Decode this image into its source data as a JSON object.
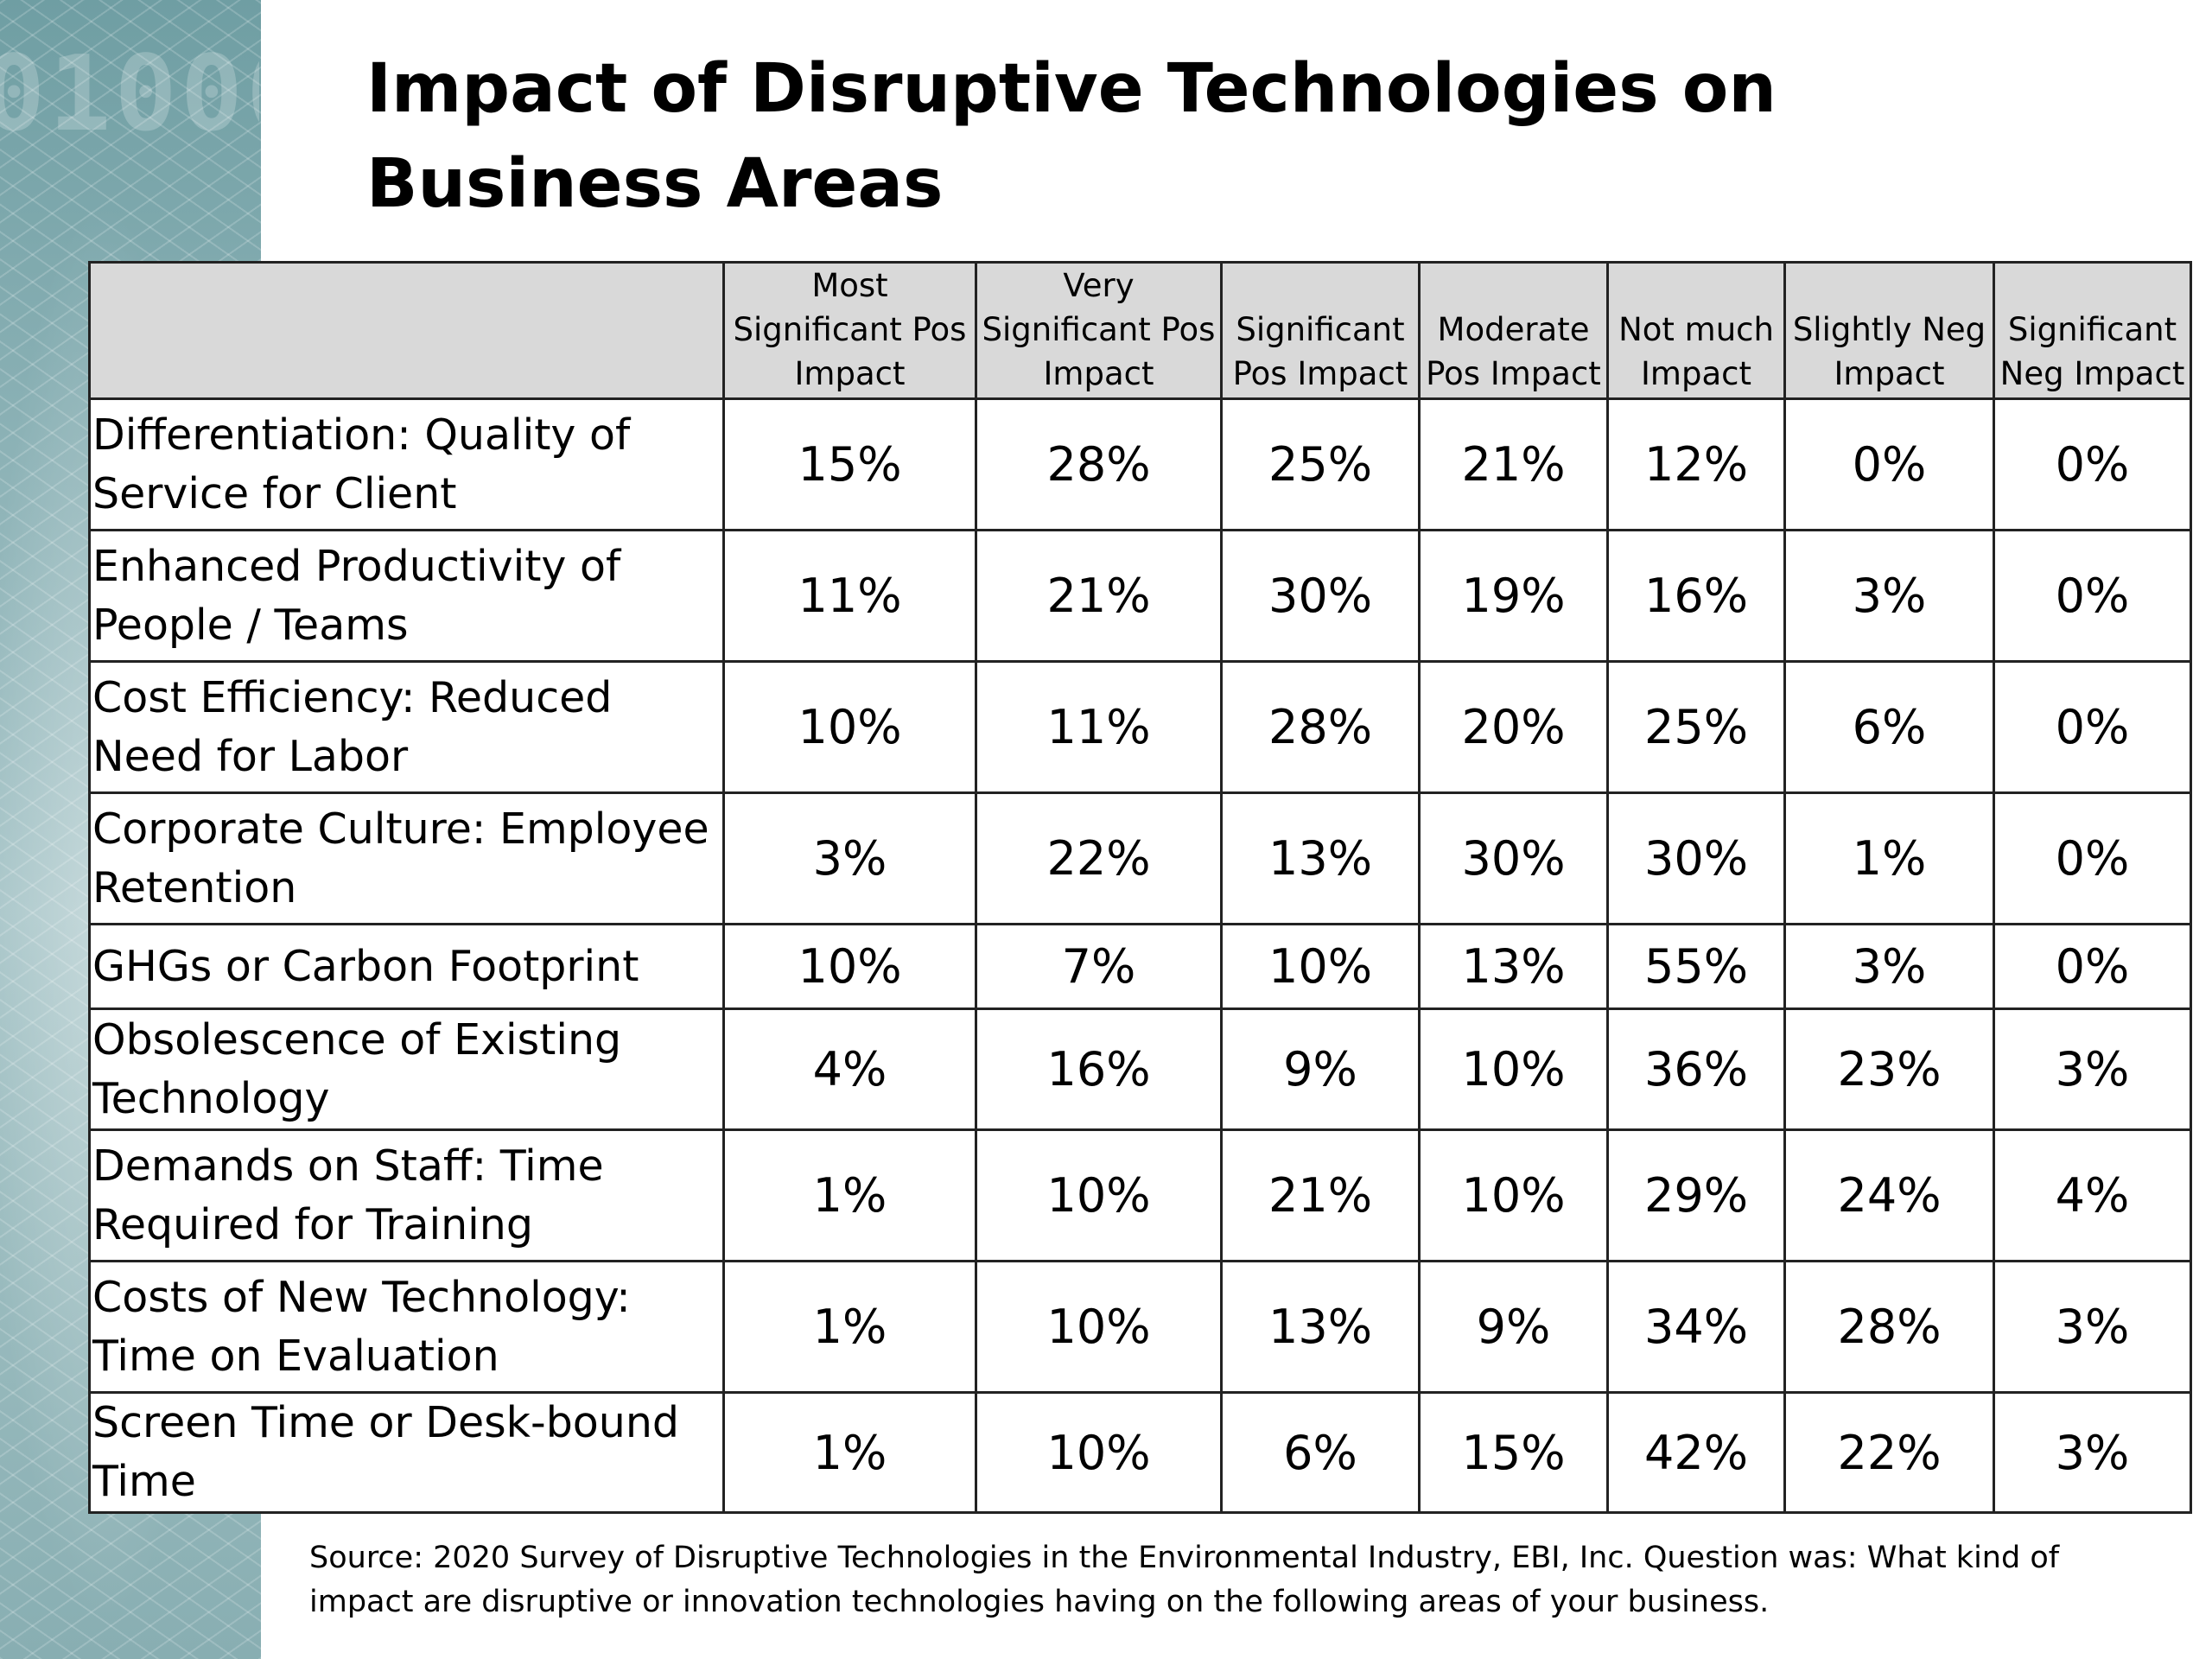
{
  "title": "Impact of Disruptive Technologies on Business Areas",
  "source": "Source: 2020 Survey of Disruptive Technologies in the Environmental Industry, EBI, Inc. Question was: What kind of impact are disruptive or innovation technologies having on the following areas of your business.",
  "chart_data": {
    "type": "table",
    "title": "Impact of Disruptive Technologies on Business Areas",
    "columns": [
      "Most Significant Pos Impact",
      "Very Significant Pos Impact",
      "Significant Pos Impact",
      "Moderate Pos Impact",
      "Not much Impact",
      "Slightly Neg Impact",
      "Significant Neg Impact"
    ],
    "rows": [
      {
        "label": "Differentiation: Quality of Service for Client",
        "values": [
          "15%",
          "28%",
          "25%",
          "21%",
          "12%",
          "0%",
          "0%"
        ]
      },
      {
        "label": "Enhanced Productivity of People / Teams",
        "values": [
          "11%",
          "21%",
          "30%",
          "19%",
          "16%",
          "3%",
          "0%"
        ]
      },
      {
        "label": "Cost Efficiency: Reduced Need for Labor",
        "values": [
          "10%",
          "11%",
          "28%",
          "20%",
          "25%",
          "6%",
          "0%"
        ]
      },
      {
        "label": "Corporate Culture: Employee Retention",
        "values": [
          "3%",
          "22%",
          "13%",
          "30%",
          "30%",
          "1%",
          "0%"
        ]
      },
      {
        "label": "GHGs or Carbon Footprint",
        "values": [
          "10%",
          "7%",
          "10%",
          "13%",
          "55%",
          "3%",
          "0%"
        ]
      },
      {
        "label": "Obsolescence of Existing Technology",
        "values": [
          "4%",
          "16%",
          "9%",
          "10%",
          "36%",
          "23%",
          "3%"
        ]
      },
      {
        "label": "Demands on Staff: Time Required for Training",
        "values": [
          "1%",
          "10%",
          "21%",
          "10%",
          "29%",
          "24%",
          "4%"
        ]
      },
      {
        "label": "Costs of New Technology: Time on Evaluation",
        "values": [
          "1%",
          "10%",
          "13%",
          "9%",
          "34%",
          "28%",
          "3%"
        ]
      },
      {
        "label": "Screen Time or Desk-bound Time",
        "values": [
          "1%",
          "10%",
          "6%",
          "15%",
          "42%",
          "22%",
          "3%"
        ]
      }
    ]
  }
}
